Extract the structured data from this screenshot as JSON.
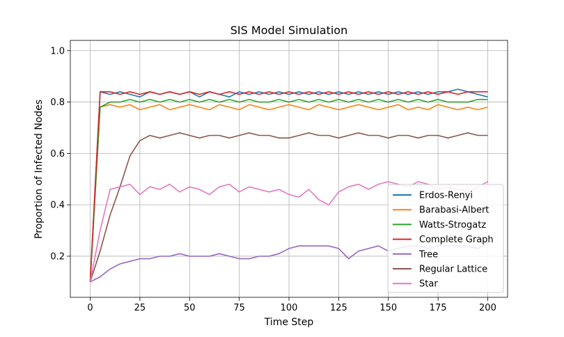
{
  "chart_data": {
    "type": "line",
    "title": "SIS Model Simulation",
    "xlabel": "Time Step",
    "ylabel": "Proportion of Infected Nodes",
    "xlim": [
      -10,
      210
    ],
    "ylim": [
      0.04,
      1.04
    ],
    "xticks": [
      0,
      25,
      50,
      75,
      100,
      125,
      150,
      175,
      200
    ],
    "yticks": [
      0.2,
      0.4,
      0.6,
      0.8,
      1.0
    ],
    "xtick_labels": [
      "0",
      "25",
      "50",
      "75",
      "100",
      "125",
      "150",
      "175",
      "200"
    ],
    "ytick_labels": [
      "0.2",
      "0.4",
      "0.6",
      "0.8",
      "1.0"
    ],
    "grid": true,
    "legend_position": "lower-right",
    "x": [
      0,
      5,
      10,
      15,
      20,
      25,
      30,
      35,
      40,
      45,
      50,
      55,
      60,
      65,
      70,
      75,
      80,
      85,
      90,
      95,
      100,
      105,
      110,
      115,
      120,
      125,
      130,
      135,
      140,
      145,
      150,
      155,
      160,
      165,
      170,
      175,
      180,
      185,
      190,
      195,
      200
    ],
    "series": [
      {
        "name": "Erdos-Renyi",
        "color": "#1f77b4",
        "values": [
          0.1,
          0.84,
          0.83,
          0.84,
          0.83,
          0.82,
          0.84,
          0.83,
          0.84,
          0.83,
          0.84,
          0.82,
          0.84,
          0.83,
          0.82,
          0.84,
          0.83,
          0.84,
          0.83,
          0.84,
          0.83,
          0.84,
          0.83,
          0.84,
          0.83,
          0.84,
          0.83,
          0.84,
          0.83,
          0.84,
          0.83,
          0.84,
          0.83,
          0.84,
          0.83,
          0.84,
          0.84,
          0.85,
          0.84,
          0.83,
          0.82
        ]
      },
      {
        "name": "Barabasi-Albert",
        "color": "#ff7f0e",
        "values": [
          0.1,
          0.78,
          0.79,
          0.78,
          0.79,
          0.77,
          0.78,
          0.79,
          0.77,
          0.78,
          0.79,
          0.78,
          0.77,
          0.79,
          0.78,
          0.77,
          0.79,
          0.78,
          0.77,
          0.78,
          0.79,
          0.78,
          0.77,
          0.79,
          0.78,
          0.77,
          0.78,
          0.79,
          0.78,
          0.77,
          0.78,
          0.79,
          0.77,
          0.78,
          0.77,
          0.79,
          0.78,
          0.77,
          0.78,
          0.77,
          0.78
        ]
      },
      {
        "name": "Watts-Strogatz",
        "color": "#2ca02c",
        "values": [
          0.1,
          0.78,
          0.8,
          0.8,
          0.81,
          0.8,
          0.81,
          0.8,
          0.81,
          0.8,
          0.81,
          0.8,
          0.81,
          0.8,
          0.81,
          0.8,
          0.81,
          0.8,
          0.8,
          0.81,
          0.8,
          0.81,
          0.8,
          0.81,
          0.8,
          0.81,
          0.8,
          0.81,
          0.8,
          0.81,
          0.8,
          0.81,
          0.8,
          0.81,
          0.8,
          0.81,
          0.8,
          0.8,
          0.8,
          0.81,
          0.81
        ]
      },
      {
        "name": "Complete Graph",
        "color": "#d62728",
        "values": [
          0.1,
          0.84,
          0.84,
          0.83,
          0.84,
          0.83,
          0.84,
          0.83,
          0.84,
          0.83,
          0.84,
          0.83,
          0.84,
          0.83,
          0.84,
          0.83,
          0.84,
          0.83,
          0.84,
          0.83,
          0.84,
          0.83,
          0.84,
          0.83,
          0.84,
          0.83,
          0.84,
          0.83,
          0.84,
          0.83,
          0.84,
          0.83,
          0.84,
          0.83,
          0.84,
          0.83,
          0.84,
          0.83,
          0.84,
          0.84,
          0.84
        ]
      },
      {
        "name": "Tree",
        "color": "#9467bd",
        "values": [
          0.1,
          0.12,
          0.15,
          0.17,
          0.18,
          0.19,
          0.19,
          0.2,
          0.2,
          0.21,
          0.2,
          0.2,
          0.2,
          0.21,
          0.2,
          0.19,
          0.19,
          0.2,
          0.2,
          0.21,
          0.23,
          0.24,
          0.24,
          0.24,
          0.24,
          0.23,
          0.19,
          0.22,
          0.23,
          0.24,
          0.22,
          0.23,
          0.24,
          0.24,
          0.23,
          0.24,
          0.24,
          0.24,
          0.24,
          0.23,
          0.25
        ]
      },
      {
        "name": "Regular Lattice",
        "color": "#8c564b",
        "values": [
          0.1,
          0.22,
          0.36,
          0.47,
          0.59,
          0.65,
          0.67,
          0.66,
          0.67,
          0.68,
          0.67,
          0.66,
          0.67,
          0.67,
          0.66,
          0.67,
          0.68,
          0.67,
          0.67,
          0.66,
          0.66,
          0.67,
          0.68,
          0.67,
          0.67,
          0.66,
          0.67,
          0.68,
          0.67,
          0.67,
          0.66,
          0.67,
          0.67,
          0.66,
          0.67,
          0.67,
          0.66,
          0.67,
          0.68,
          0.67,
          0.67
        ]
      },
      {
        "name": "Star",
        "color": "#e377c2",
        "values": [
          0.1,
          0.3,
          0.46,
          0.47,
          0.48,
          0.44,
          0.47,
          0.46,
          0.48,
          0.45,
          0.47,
          0.46,
          0.44,
          0.47,
          0.48,
          0.45,
          0.47,
          0.46,
          0.45,
          0.46,
          0.44,
          0.43,
          0.46,
          0.42,
          0.4,
          0.45,
          0.47,
          0.48,
          0.46,
          0.48,
          0.49,
          0.48,
          0.47,
          0.49,
          0.48,
          0.46,
          0.47,
          0.46,
          0.45,
          0.47,
          0.49
        ]
      }
    ]
  }
}
